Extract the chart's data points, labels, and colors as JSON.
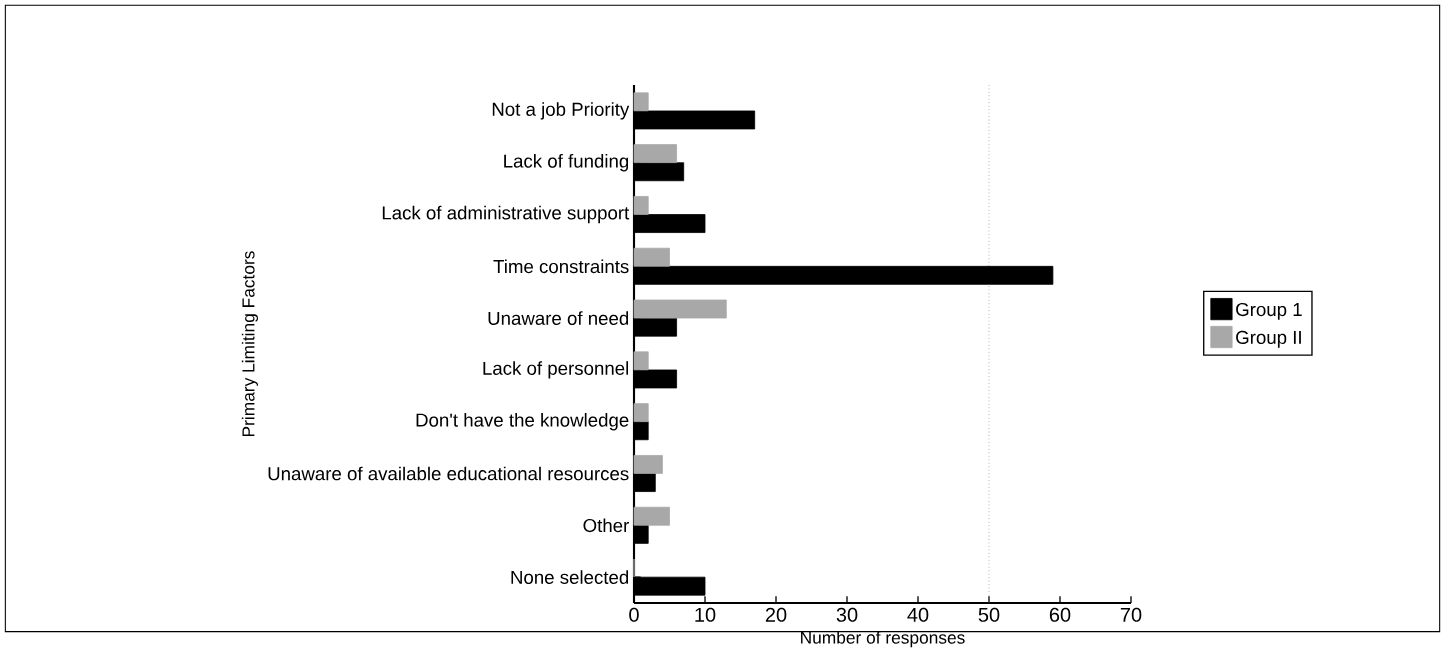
{
  "chart_data": {
    "type": "bar",
    "orientation": "horizontal",
    "xlabel": "Number of responses",
    "ylabel": "Primary Limiting Factors",
    "categories": [
      "Not a job Priority",
      "Lack of funding",
      "Lack of administrative support",
      "Time  constraints",
      "Unaware of need",
      "Lack of personnel",
      "Don't have the knowledge",
      "Unaware of available educational resources",
      "Other",
      "None selected"
    ],
    "series": [
      {
        "name": "Group 1",
        "color": "#000000",
        "values": [
          17,
          7,
          10,
          59,
          6,
          6,
          2,
          3,
          2,
          10
        ]
      },
      {
        "name": "Group II",
        "color": "#a8a8a8",
        "values": [
          2,
          6,
          2,
          5,
          13,
          2,
          2,
          4,
          5,
          0
        ]
      }
    ],
    "xlim": [
      0,
      70
    ],
    "xticks": [
      0,
      10,
      20,
      30,
      40,
      50,
      60,
      70
    ],
    "ref_lines": [
      {
        "axis": "x",
        "value": 50,
        "color": "#888888",
        "line_style": "dotted"
      }
    ],
    "legend": "right",
    "grid": false
  }
}
